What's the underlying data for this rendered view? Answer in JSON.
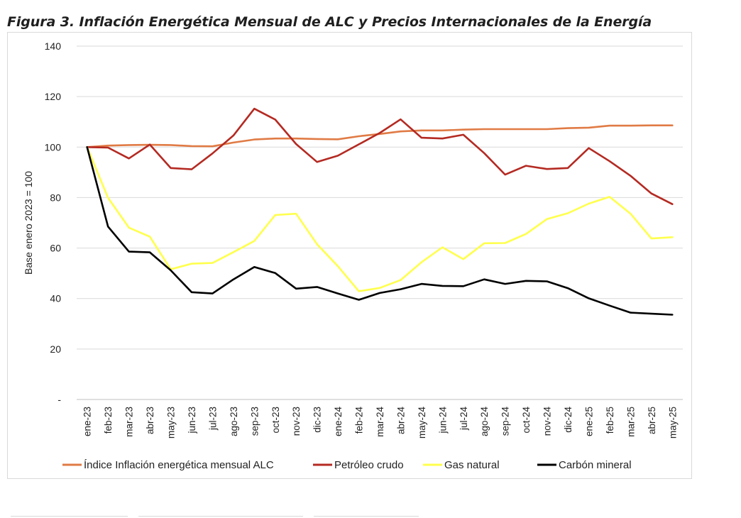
{
  "figure": {
    "title": "Figura 3. Inflación Energética Mensual de ALC y Precios Internacionales de la Energía"
  },
  "chart_data": {
    "type": "line",
    "title": "",
    "xlabel": "",
    "ylabel": "Base enero 2023 = 100",
    "ylim": [
      0,
      140
    ],
    "yticks": [
      0,
      20,
      40,
      60,
      80,
      100,
      120,
      140
    ],
    "ytick_labels": [
      "-",
      "20",
      "40",
      "60",
      "80",
      "100",
      "120",
      "140"
    ],
    "grid": true,
    "legend_position": "bottom",
    "categories": [
      "ene-23",
      "feb-23",
      "mar-23",
      "abr-23",
      "may-23",
      "jun-23",
      "jul-23",
      "ago-23",
      "sep-23",
      "oct-23",
      "nov-23",
      "dic-23",
      "ene-24",
      "feb-24",
      "mar-24",
      "abr-24",
      "may-24",
      "jun-24",
      "jul-24",
      "ago-24",
      "sep-24",
      "oct-24",
      "nov-24",
      "dic-24",
      "ene-25",
      "feb-25",
      "mar-25",
      "abr-25",
      "may-25"
    ],
    "series": [
      {
        "name": "Índice Inflación energética mensual ALC",
        "color": "#e07b45",
        "values": [
          100,
          100.6,
          100.8,
          100.9,
          100.8,
          100.4,
          100.3,
          101.8,
          103.0,
          103.4,
          103.4,
          103.2,
          103.1,
          104.3,
          105.2,
          106.2,
          106.6,
          106.6,
          106.9,
          107.1,
          107.1,
          107.1,
          107.1,
          107.5,
          107.7,
          108.5,
          108.5,
          108.6,
          108.6
        ]
      },
      {
        "name": "Petróleo crudo",
        "color": "#b42a22",
        "values": [
          100,
          99.8,
          95.5,
          101.0,
          91.7,
          91.2,
          97.5,
          104.6,
          115.2,
          110.9,
          101.2,
          94.1,
          96.6,
          101.1,
          105.6,
          111.0,
          103.7,
          103.4,
          104.9,
          97.6,
          89.1,
          92.6,
          91.3,
          91.7,
          99.6,
          94.4,
          88.6,
          81.6,
          77.4
        ]
      },
      {
        "name": "Gas natural",
        "color": "#ffff4d",
        "values": [
          100,
          79.9,
          68.1,
          64.5,
          51.6,
          53.8,
          54.1,
          58.4,
          62.8,
          73.1,
          73.6,
          61.5,
          52.8,
          42.9,
          44.2,
          47.3,
          54.4,
          60.3,
          55.6,
          61.9,
          62.0,
          65.6,
          71.5,
          73.8,
          77.6,
          80.3,
          73.6,
          63.8,
          64.3
        ]
      },
      {
        "name": "Carbón mineral",
        "color": "#000000",
        "values": [
          100,
          68.5,
          58.6,
          58.3,
          51.2,
          42.5,
          42.0,
          47.6,
          52.5,
          50.1,
          43.9,
          44.6,
          42.0,
          39.5,
          42.2,
          43.7,
          45.8,
          45.0,
          44.9,
          47.6,
          45.8,
          47.0,
          46.8,
          44.1,
          40.1,
          37.2,
          34.4,
          34.0,
          33.6
        ]
      }
    ]
  }
}
